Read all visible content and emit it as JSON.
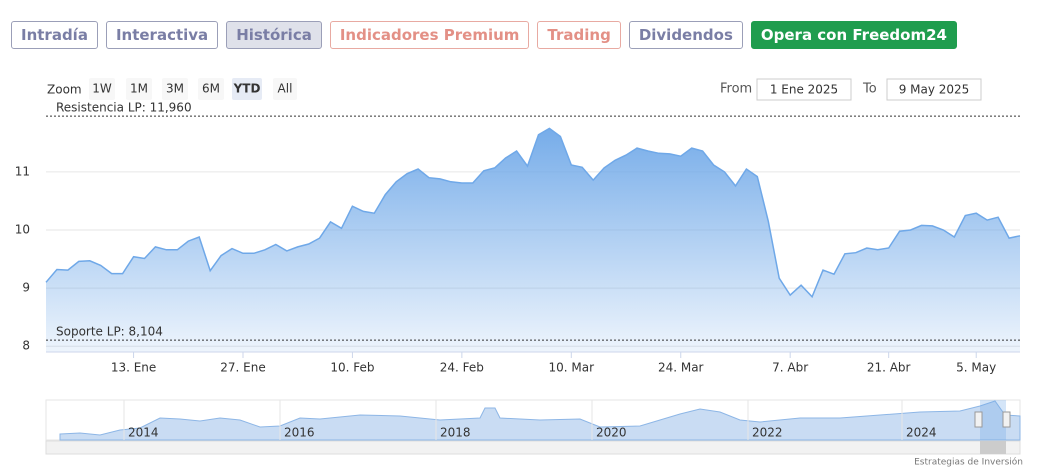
{
  "tabs": [
    {
      "label": "Intradía",
      "style": "plain"
    },
    {
      "label": "Interactiva",
      "style": "plain"
    },
    {
      "label": "Histórica",
      "style": "selected"
    },
    {
      "label": "Indicadores Premium",
      "style": "warm"
    },
    {
      "label": "Trading",
      "style": "warm"
    },
    {
      "label": "Dividendos",
      "style": "plain"
    },
    {
      "label": "Opera con Freedom24",
      "style": "cta"
    }
  ],
  "range_selector": {
    "zoom_label": "Zoom",
    "buttons": [
      "1W",
      "1M",
      "3M",
      "6M",
      "YTD",
      "All"
    ],
    "selected": "YTD",
    "from_label": "From",
    "from_value": "1 Ene 2025",
    "to_label": "To",
    "to_value": "9 May 2025"
  },
  "chart_data": {
    "type": "area",
    "color": "#6fa8e8",
    "categories": [
      null,
      null,
      null,
      null,
      null,
      null,
      null,
      null,
      "13. Ene",
      null,
      null,
      null,
      null,
      null,
      null,
      null,
      null,
      null,
      "27. Ene",
      null,
      null,
      null,
      null,
      null,
      null,
      null,
      null,
      null,
      "10. Feb",
      null,
      null,
      null,
      null,
      null,
      null,
      null,
      null,
      null,
      "24. Feb",
      null,
      null,
      null,
      null,
      null,
      null,
      null,
      null,
      null,
      "10. Mar",
      null,
      null,
      null,
      null,
      null,
      null,
      null,
      null,
      null,
      "24. Mar",
      null,
      null,
      null,
      null,
      null,
      null,
      null,
      null,
      null,
      "7. Abr",
      null,
      null,
      null,
      null,
      null,
      null,
      null,
      null,
      "21. Abr",
      null,
      null,
      null,
      null,
      null,
      null,
      null,
      "5. May",
      null,
      null,
      null,
      null
    ],
    "values": [
      9.1,
      9.32,
      9.31,
      9.46,
      9.47,
      9.39,
      9.25,
      9.25,
      9.54,
      9.51,
      9.71,
      9.66,
      9.66,
      9.81,
      9.88,
      9.3,
      9.56,
      9.68,
      9.6,
      9.6,
      9.66,
      9.75,
      9.64,
      9.71,
      9.76,
      9.86,
      10.14,
      10.03,
      10.41,
      10.32,
      10.29,
      10.61,
      10.83,
      10.97,
      11.05,
      10.9,
      10.88,
      10.83,
      10.81,
      10.81,
      11.02,
      11.07,
      11.24,
      11.36,
      11.1,
      11.64,
      11.75,
      11.61,
      11.12,
      11.08,
      10.86,
      11.07,
      11.2,
      11.29,
      11.41,
      11.36,
      11.32,
      11.31,
      11.27,
      11.41,
      11.36,
      11.12,
      11.0,
      10.76,
      11.05,
      10.92,
      10.15,
      9.17,
      8.88,
      9.05,
      8.85,
      9.31,
      9.24,
      9.59,
      9.61,
      9.69,
      9.66,
      9.69,
      9.98,
      10.0,
      10.08,
      10.07,
      10.0,
      9.88,
      10.25,
      10.29,
      10.17,
      10.22,
      9.86,
      9.9
    ],
    "ylim": [
      7.9,
      11.98
    ],
    "yticks": [
      8,
      9,
      10,
      11
    ],
    "grid": true,
    "plot_lines": [
      {
        "label": "Resistencia LP: 11,960",
        "value": 11.96
      },
      {
        "label": "Soporte LP: 8,104",
        "value": 8.104
      }
    ]
  },
  "navigator": {
    "labels": [
      "2014",
      "2016",
      "2018",
      "2020",
      "2022",
      "2024"
    ]
  },
  "credit": "Estrategias de Inversión"
}
